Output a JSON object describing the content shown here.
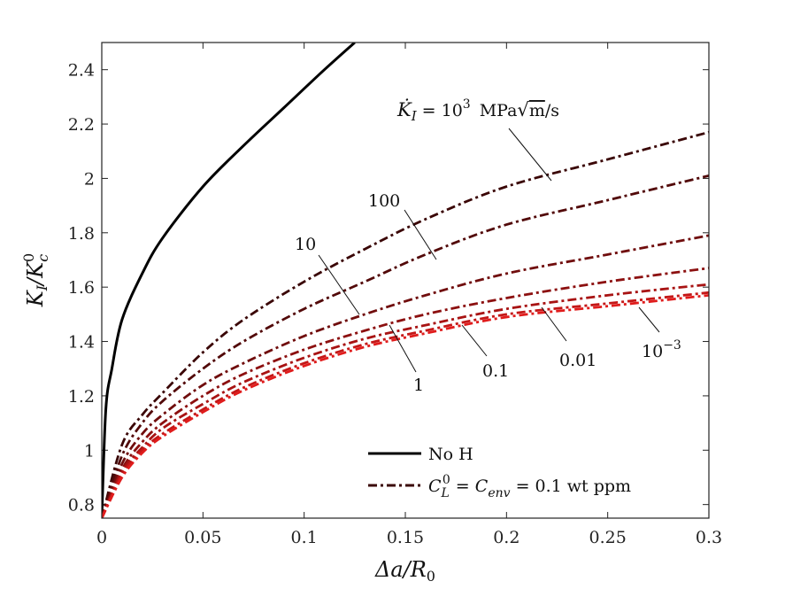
{
  "chart_data": {
    "type": "line",
    "xlabel": "Δa/R₀",
    "ylabel": "K_I / K_c^0",
    "xlim": [
      0,
      0.3
    ],
    "ylim": [
      0.75,
      2.5
    ],
    "xticks": [
      0,
      0.05,
      0.1,
      0.15,
      0.2,
      0.25,
      0.3
    ],
    "xtick_labels": [
      "0",
      "0.05",
      "0.1",
      "0.15",
      "0.2",
      "0.25",
      "0.3"
    ],
    "yticks": [
      0.8,
      1,
      1.2,
      1.4,
      1.6,
      1.8,
      2,
      2.2,
      2.4
    ],
    "ytick_labels": [
      "0.8",
      "1",
      "1.2",
      "1.4",
      "1.6",
      "1.8",
      "2",
      "2.2",
      "2.4"
    ],
    "series": [
      {
        "name": "No H",
        "style": "solid",
        "color": "#000000",
        "x": [
          0,
          0.002,
          0.005,
          0.01,
          0.02,
          0.03,
          0.05,
          0.07,
          0.09,
          0.11,
          0.125
        ],
        "y": [
          0.75,
          1.15,
          1.3,
          1.48,
          1.65,
          1.78,
          1.97,
          2.12,
          2.26,
          2.4,
          2.5
        ]
      },
      {
        "name": "1000",
        "style": "dashdot",
        "color": "#3a0606",
        "x": [
          0,
          0.01,
          0.02,
          0.03,
          0.05,
          0.07,
          0.1,
          0.13,
          0.16,
          0.2,
          0.25,
          0.3
        ],
        "y": [
          0.75,
          1.02,
          1.13,
          1.21,
          1.36,
          1.48,
          1.62,
          1.74,
          1.85,
          1.97,
          2.07,
          2.17
        ]
      },
      {
        "name": "100",
        "style": "dashdot",
        "color": "#520909",
        "x": [
          0,
          0.01,
          0.02,
          0.03,
          0.05,
          0.07,
          0.1,
          0.13,
          0.16,
          0.2,
          0.25,
          0.3
        ],
        "y": [
          0.75,
          0.98,
          1.1,
          1.18,
          1.3,
          1.4,
          1.52,
          1.62,
          1.72,
          1.83,
          1.92,
          2.01
        ]
      },
      {
        "name": "10",
        "style": "dashdot",
        "color": "#700d0d",
        "x": [
          0,
          0.01,
          0.02,
          0.03,
          0.05,
          0.07,
          0.1,
          0.13,
          0.16,
          0.2,
          0.25,
          0.3
        ],
        "y": [
          0.75,
          0.95,
          1.06,
          1.13,
          1.24,
          1.32,
          1.42,
          1.5,
          1.57,
          1.65,
          1.72,
          1.79
        ]
      },
      {
        "name": "1",
        "style": "dashdot",
        "color": "#8c1010",
        "x": [
          0,
          0.01,
          0.02,
          0.03,
          0.05,
          0.07,
          0.1,
          0.13,
          0.16,
          0.2,
          0.25,
          0.3
        ],
        "y": [
          0.75,
          0.93,
          1.03,
          1.1,
          1.2,
          1.28,
          1.37,
          1.44,
          1.5,
          1.56,
          1.62,
          1.67
        ]
      },
      {
        "name": "0.1",
        "style": "dashdot",
        "color": "#a81313",
        "x": [
          0,
          0.01,
          0.02,
          0.03,
          0.05,
          0.07,
          0.1,
          0.13,
          0.16,
          0.2,
          0.25,
          0.3
        ],
        "y": [
          0.75,
          0.92,
          1.01,
          1.08,
          1.17,
          1.25,
          1.34,
          1.41,
          1.46,
          1.52,
          1.57,
          1.61
        ]
      },
      {
        "name": "0.01",
        "style": "dashdot",
        "color": "#c41717",
        "x": [
          0,
          0.01,
          0.02,
          0.03,
          0.05,
          0.07,
          0.1,
          0.13,
          0.16,
          0.2,
          0.25,
          0.3
        ],
        "y": [
          0.75,
          0.91,
          1.0,
          1.06,
          1.15,
          1.23,
          1.32,
          1.39,
          1.44,
          1.5,
          1.54,
          1.58
        ]
      },
      {
        "name": "0.001",
        "style": "dashdot",
        "color": "#e01c1c",
        "x": [
          0,
          0.01,
          0.02,
          0.03,
          0.05,
          0.07,
          0.1,
          0.13,
          0.16,
          0.2,
          0.25,
          0.3
        ],
        "y": [
          0.75,
          0.9,
          0.99,
          1.05,
          1.14,
          1.22,
          1.31,
          1.38,
          1.43,
          1.49,
          1.53,
          1.57
        ]
      }
    ],
    "annotations": {
      "rate_prefix": "K̇",
      "rate_sub": "I",
      "rate_eq": "= 10",
      "rate_exp": "3",
      "rate_unit_a": "MPa",
      "rate_unit_root": "m",
      "rate_unit_b": "/s",
      "label_100": "100",
      "label_10": "10",
      "label_1": "1",
      "label_0_1": "0.1",
      "label_0_01": "0.01",
      "label_1e3_base": "10",
      "label_1e3_exp": "−3"
    },
    "legend": {
      "placement": "bottom-right",
      "no_h": "No H",
      "h_C": "C",
      "h_C_sub": "L",
      "h_C_sup": "0",
      "h_eq1": " = ",
      "h_env": "C",
      "h_env_sub": "env",
      "h_eq2": " = 0.1 wt ppm"
    },
    "axis_title_parts": {
      "x_a": "Δa/R",
      "x_sub": "0",
      "y_a": "K",
      "y_sub": "I",
      "y_b": "/K",
      "y_sup": "0",
      "y_sub2": "c"
    }
  }
}
